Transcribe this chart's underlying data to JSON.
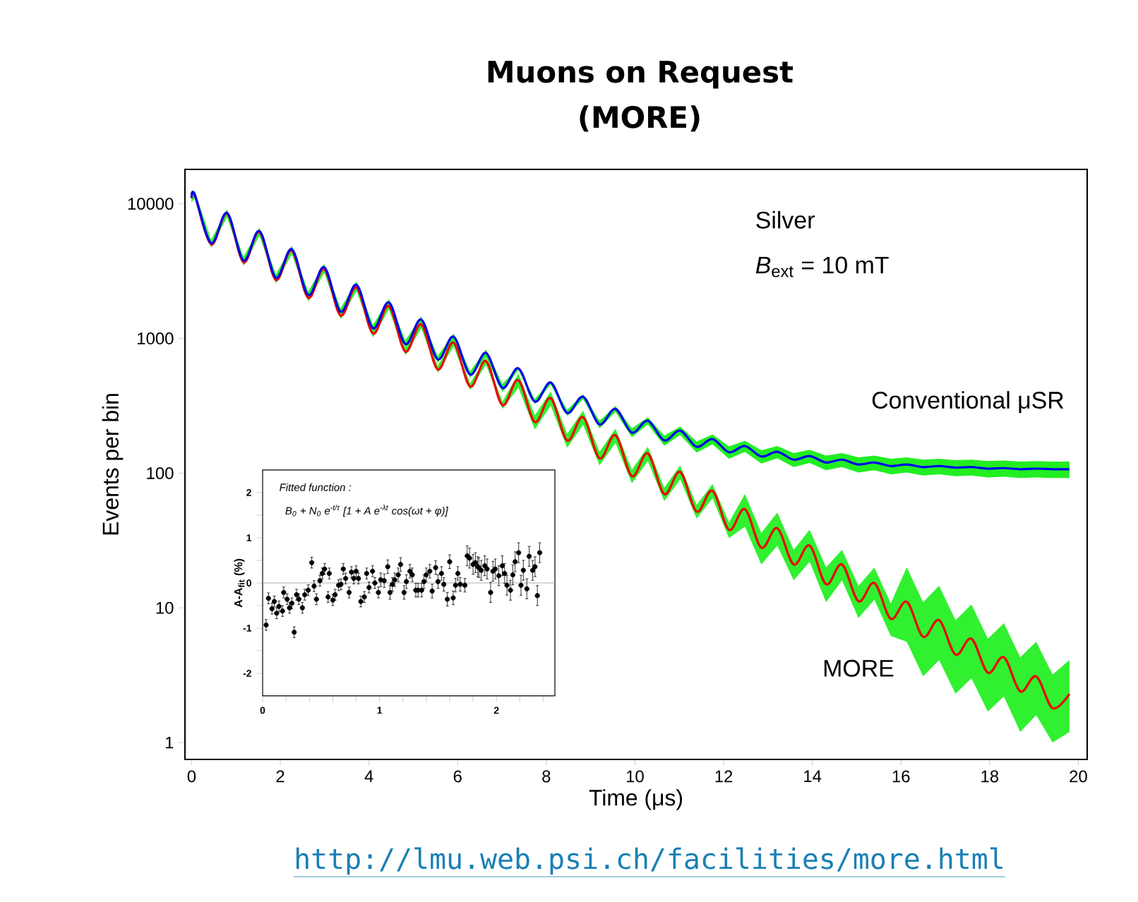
{
  "chart_data": [
    {
      "type": "line",
      "title": "Muons on Request",
      "subtitle": "(MORE)",
      "xlabel": "Time (μs)",
      "ylabel": "Events per bin",
      "log": true,
      "xlim": [
        -0.15,
        20.2
      ],
      "ylim": [
        0.75,
        18000
      ],
      "xticks": [
        0,
        2,
        4,
        6,
        8,
        10,
        12,
        14,
        16,
        18,
        20
      ],
      "yticks": [
        1,
        10,
        100,
        1000,
        10000
      ],
      "annotations": [
        "Silver",
        "*B*$_{ext}$ = 10 mT",
        "http://lmu.web.psi.ch/facilities/more.html"
      ],
      "x": [
        0,
        0.07,
        0.44,
        0.8,
        1.17,
        1.53,
        1.9,
        2.26,
        2.63,
        2.99,
        3.36,
        3.72,
        4.09,
        4.45,
        4.82,
        5.18,
        5.55,
        5.91,
        6.28,
        6.64,
        7.01,
        7.37,
        7.74,
        8.1,
        8.47,
        8.83,
        9.2,
        9.56,
        9.93,
        10.29,
        10.66,
        11.02,
        11.39,
        11.75,
        12.12,
        12.48,
        12.85,
        13.21,
        13.58,
        13.94,
        14.31,
        14.67,
        15.04,
        15.4,
        15.77,
        16.13,
        16.5,
        16.86,
        17.23,
        17.59,
        17.96,
        18.32,
        18.69,
        19.05,
        19.42,
        19.8
      ],
      "series": [
        {
          "name": "Conventional μSR",
          "color": "#0000ee",
          "values": [
            11100,
            11700,
            5100,
            8550,
            3790,
            6270,
            2820,
            4600,
            2100,
            3380,
            1580,
            2500,
            1190,
            1850,
            910,
            1380,
            700,
            1030,
            540,
            780,
            430,
            600,
            340,
            470,
            280,
            370,
            230,
            300,
            200,
            245,
            175,
            207,
            157,
            179,
            143,
            159,
            133,
            144,
            126,
            134,
            120,
            126,
            116,
            120,
            113,
            116,
            111,
            113,
            110,
            111,
            108,
            109,
            107,
            108,
            107,
            107
          ],
          "lower": [
            10400,
            11000,
            4800,
            8040,
            3560,
            5890,
            2650,
            4320,
            1970,
            3180,
            1490,
            2350,
            1120,
            1740,
            855,
            1300,
            660,
            970,
            510,
            730,
            400,
            585,
            325,
            455,
            265,
            355,
            215,
            285,
            185,
            230,
            160,
            192,
            142,
            164,
            128,
            144,
            118,
            129,
            111,
            119,
            105,
            111,
            101,
            105,
            98,
            101,
            96,
            98,
            95,
            96,
            93,
            94,
            92,
            93,
            92,
            92
          ],
          "upper": [
            11800,
            12400,
            5400,
            9060,
            4020,
            6650,
            2990,
            4880,
            2230,
            3580,
            1670,
            2650,
            1260,
            1960,
            965,
            1460,
            740,
            1090,
            570,
            830,
            460,
            615,
            355,
            485,
            295,
            385,
            245,
            315,
            215,
            260,
            190,
            222,
            172,
            194,
            158,
            174,
            148,
            159,
            141,
            149,
            135,
            141,
            131,
            135,
            128,
            131,
            126,
            128,
            125,
            126,
            123,
            124,
            122,
            123,
            122,
            122
          ]
        },
        {
          "name": "MORE",
          "color": "#ee0000",
          "values": [
            11000,
            11600,
            5000,
            8450,
            3680,
            6160,
            2720,
            4500,
            2000,
            3280,
            1480,
            2390,
            1090,
            1740,
            800,
            1270,
            590,
            930,
            440,
            680,
            320,
            490,
            240,
            360,
            175,
            260,
            129,
            191,
            95,
            140,
            70,
            102,
            52,
            74,
            38,
            54,
            28,
            39,
            21,
            29,
            15,
            21,
            11.2,
            15.3,
            8.3,
            11.1,
            6.1,
            8.1,
            4.5,
            5.9,
            3.3,
            4.3,
            2.4,
            3.1,
            1.8,
            2.3
          ],
          "lower": [
            10300,
            10900,
            4700,
            7940,
            3460,
            5790,
            2560,
            4230,
            1880,
            3080,
            1390,
            2250,
            1020,
            1640,
            750,
            1190,
            555,
            875,
            415,
            640,
            300,
            431,
            211,
            317,
            154,
            229,
            114,
            168,
            84,
            123,
            62,
            90,
            46,
            65,
            33,
            40,
            21,
            29,
            16,
            22,
            11,
            16,
            8.4,
            11.5,
            6.2,
            5.6,
            3.1,
            4.1,
            2.3,
            3.0,
            1.7,
            2.2,
            1.2,
            1.6,
            1,
            1.2
          ],
          "upper": [
            11700,
            12300,
            5300,
            8960,
            3900,
            6530,
            2880,
            4770,
            2120,
            3480,
            1570,
            2530,
            1160,
            1840,
            850,
            1350,
            625,
            985,
            465,
            720,
            340,
            549,
            269,
            403,
            196,
            291,
            144,
            214,
            106,
            157,
            78,
            114,
            58,
            83,
            43,
            70,
            36,
            51,
            27,
            38,
            20,
            27,
            14.6,
            19.9,
            10.8,
            20,
            11,
            14.6,
            8.1,
            10.6,
            5.9,
            7.7,
            4.3,
            5.6,
            3.2,
            4.1
          ]
        }
      ]
    },
    {
      "type": "scatter",
      "ylabel": "A-A$_{fit}$ (%)",
      "marker": "circle",
      "color": "#000000",
      "xlim": [
        0,
        2.5
      ],
      "ylim": [
        -2.5,
        2.5
      ],
      "xticks": [
        0,
        {
          "value": 0.2,
          "label": null
        },
        {
          "value": 0.4,
          "label": null
        },
        {
          "value": 0.6,
          "label": null
        },
        {
          "value": 0.8,
          "label": null
        },
        1,
        {
          "value": 1.2,
          "label": null
        },
        {
          "value": 1.4,
          "label": null
        },
        {
          "value": 1.6,
          "label": null
        },
        {
          "value": 1.8,
          "label": null
        },
        2,
        {
          "value": 2.2,
          "label": null
        },
        {
          "value": 2.4,
          "label": null
        }
      ],
      "yticks": [
        -2,
        {
          "value": -1.5,
          "label": null
        },
        -1,
        {
          "value": -0.5,
          "label": null
        },
        0,
        {
          "value": 0.5,
          "label": null
        },
        1,
        {
          "value": 1.5,
          "label": null
        },
        2
      ],
      "annotations": [
        "Fitted function :",
        "B$_{0}$ + N$_{0}$ e$^{-t/τ}$ [1 + A e$^{-λt}$ cos(ωt + φ)]"
      ],
      "ref_lines": [
        {
          "axis": "y",
          "value": 0,
          "color": "#999999"
        }
      ],
      "x": [
        0.03,
        0.05,
        0.08,
        0.1,
        0.12,
        0.14,
        0.17,
        0.18,
        0.21,
        0.23,
        0.25,
        0.27,
        0.29,
        0.31,
        0.34,
        0.36,
        0.39,
        0.42,
        0.44,
        0.46,
        0.49,
        0.51,
        0.53,
        0.56,
        0.57,
        0.6,
        0.62,
        0.65,
        0.67,
        0.69,
        0.71,
        0.74,
        0.76,
        0.78,
        0.8,
        0.82,
        0.84,
        0.87,
        0.89,
        0.91,
        0.94,
        0.96,
        0.99,
        1.01,
        1.04,
        1.07,
        1.09,
        1.11,
        1.13,
        1.16,
        1.18,
        1.21,
        1.23,
        1.26,
        1.28,
        1.31,
        1.33,
        1.36,
        1.38,
        1.4,
        1.43,
        1.45,
        1.48,
        1.5,
        1.53,
        1.55,
        1.58,
        1.6,
        1.63,
        1.65,
        1.67,
        1.69,
        1.73,
        1.75,
        1.77,
        1.8,
        1.82,
        1.84,
        1.85,
        1.87,
        1.9,
        1.92,
        1.95,
        1.97,
        1.99,
        2.02,
        2.05,
        2.07,
        2.09,
        2.12,
        2.14,
        2.16,
        2.19,
        2.21,
        2.23,
        2.26,
        2.28,
        2.31,
        2.33,
        2.35,
        2.37
      ],
      "values": [
        -0.93,
        -0.34,
        -0.57,
        -0.41,
        -0.67,
        -0.52,
        -0.62,
        -0.21,
        -0.36,
        -0.55,
        -0.45,
        -1.09,
        -0.26,
        -0.36,
        -0.55,
        -0.26,
        -0.16,
        0.45,
        -0.07,
        -0.36,
        0.05,
        0.21,
        0.31,
        -0.31,
        0.21,
        -0.38,
        -0.26,
        -0.05,
        -0.03,
        0.31,
        0.1,
        -0.21,
        0.24,
        0.1,
        0.26,
        0.1,
        -0.41,
        -0.31,
        0.21,
        -0.1,
        0.26,
        0.0,
        -0.21,
        0.07,
        0.05,
        0.36,
        -0.21,
        -0.03,
        0.07,
        0.18,
        0.41,
        -0.21,
        0.03,
        0.26,
        0.18,
        -0.16,
        -0.16,
        -0.16,
        0.03,
        0.18,
        0.26,
        -0.18,
        0.34,
        0.03,
        0.21,
        -0.03,
        -0.36,
        0.47,
        -0.33,
        -0.05,
        0.21,
        -0.03,
        -0.05,
        0.6,
        0.55,
        0.41,
        0.45,
        0.36,
        0.34,
        0.28,
        0.38,
        0.31,
        -0.21,
        0.26,
        0.31,
        0.16,
        0.38,
        0.21,
        -0.05,
        -0.16,
        0.18,
        0.47,
        0.67,
        -0.05,
        0.28,
        -0.13,
        0.59,
        0.28,
        0.36,
        -0.28,
        0.67
      ],
      "errors": [
        0.12,
        0.12,
        0.12,
        0.12,
        0.12,
        0.12,
        0.12,
        0.12,
        0.12,
        0.12,
        0.12,
        0.12,
        0.12,
        0.12,
        0.12,
        0.12,
        0.12,
        0.12,
        0.12,
        0.12,
        0.12,
        0.12,
        0.12,
        0.12,
        0.12,
        0.12,
        0.12,
        0.12,
        0.12,
        0.12,
        0.12,
        0.12,
        0.12,
        0.12,
        0.12,
        0.12,
        0.12,
        0.12,
        0.12,
        0.12,
        0.12,
        0.12,
        0.12,
        0.15,
        0.15,
        0.15,
        0.15,
        0.15,
        0.15,
        0.15,
        0.15,
        0.15,
        0.15,
        0.15,
        0.15,
        0.15,
        0.15,
        0.15,
        0.15,
        0.15,
        0.15,
        0.15,
        0.15,
        0.15,
        0.15,
        0.15,
        0.15,
        0.15,
        0.15,
        0.15,
        0.15,
        0.15,
        0.15,
        0.22,
        0.22,
        0.22,
        0.22,
        0.22,
        0.22,
        0.22,
        0.22,
        0.22,
        0.22,
        0.22,
        0.22,
        0.22,
        0.22,
        0.22,
        0.22,
        0.22,
        0.22,
        0.22,
        0.22,
        0.22,
        0.22,
        0.22,
        0.22,
        0.22,
        0.22,
        0.22,
        0.22
      ]
    }
  ]
}
